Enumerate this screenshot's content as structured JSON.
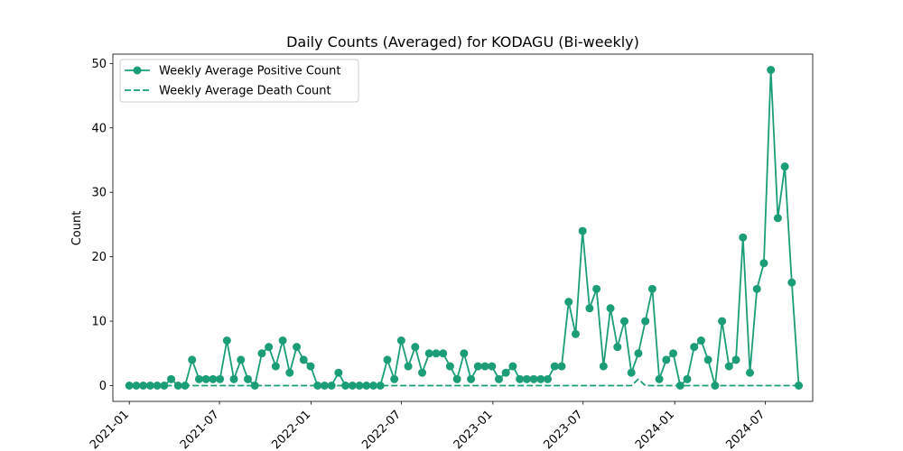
{
  "chart_data": {
    "type": "line",
    "title": "Daily Counts (Averaged) for KODAGU (Bi-weekly)",
    "xlabel": "",
    "ylabel": "Count",
    "ylim": [
      -2.45,
      51.45
    ],
    "yticks": [
      0,
      10,
      20,
      30,
      40,
      50
    ],
    "xlim": [
      "2020-11-29",
      "2024-10-04"
    ],
    "xticks": [
      "2021-01",
      "2021-07",
      "2022-01",
      "2022-07",
      "2023-01",
      "2023-07",
      "2024-01",
      "2024-07"
    ],
    "grid": false,
    "legend_position": "top-left",
    "colors": {
      "series": "#1b9e77"
    },
    "x": [
      "2021-01-01",
      "2021-01-15",
      "2021-01-29",
      "2021-02-12",
      "2021-02-26",
      "2021-03-12",
      "2021-03-26",
      "2021-04-09",
      "2021-04-23",
      "2021-05-07",
      "2021-05-21",
      "2021-06-04",
      "2021-06-18",
      "2021-07-02",
      "2021-07-16",
      "2021-07-30",
      "2021-08-13",
      "2021-08-27",
      "2021-09-10",
      "2021-09-24",
      "2021-10-08",
      "2021-10-22",
      "2021-11-05",
      "2021-11-19",
      "2021-12-03",
      "2021-12-17",
      "2021-12-31",
      "2022-01-14",
      "2022-01-28",
      "2022-02-11",
      "2022-02-25",
      "2022-03-11",
      "2022-03-25",
      "2022-04-08",
      "2022-04-22",
      "2022-05-06",
      "2022-05-20",
      "2022-06-03",
      "2022-06-17",
      "2022-07-01",
      "2022-07-15",
      "2022-07-29",
      "2022-08-12",
      "2022-08-26",
      "2022-09-09",
      "2022-09-23",
      "2022-10-07",
      "2022-10-21",
      "2022-11-04",
      "2022-11-18",
      "2022-12-02",
      "2022-12-16",
      "2022-12-30",
      "2023-01-13",
      "2023-01-27",
      "2023-02-10",
      "2023-02-24",
      "2023-03-10",
      "2023-03-24",
      "2023-04-07",
      "2023-04-21",
      "2023-05-05",
      "2023-05-19",
      "2023-06-02",
      "2023-06-16",
      "2023-06-30",
      "2023-07-14",
      "2023-07-28",
      "2023-08-11",
      "2023-08-25",
      "2023-09-08",
      "2023-09-22",
      "2023-10-06",
      "2023-10-20",
      "2023-11-03",
      "2023-11-17",
      "2023-12-01",
      "2023-12-15",
      "2023-12-29",
      "2024-01-12",
      "2024-01-26",
      "2024-02-09",
      "2024-02-23",
      "2024-03-08",
      "2024-03-22",
      "2024-04-05",
      "2024-04-19",
      "2024-05-03",
      "2024-05-17",
      "2024-05-31",
      "2024-06-14",
      "2024-06-28",
      "2024-07-12",
      "2024-07-26",
      "2024-08-09",
      "2024-08-23",
      "2024-09-06"
    ],
    "series": [
      {
        "name": "Weekly Average Positive Count",
        "style": "solid-with-markers",
        "values": [
          0,
          0,
          0,
          0,
          0,
          0,
          1,
          0,
          0,
          4,
          1,
          1,
          1,
          1,
          7,
          1,
          4,
          1,
          0,
          5,
          6,
          3,
          7,
          2,
          6,
          4,
          3,
          0,
          0,
          0,
          2,
          0,
          0,
          0,
          0,
          0,
          0,
          4,
          1,
          7,
          3,
          6,
          2,
          5,
          5,
          5,
          3,
          1,
          5,
          1,
          3,
          3,
          3,
          1,
          2,
          3,
          1,
          1,
          1,
          1,
          1,
          3,
          3,
          13,
          8,
          24,
          12,
          15,
          3,
          12,
          6,
          10,
          2,
          5,
          10,
          15,
          1,
          4,
          5,
          0,
          1,
          6,
          7,
          4,
          0,
          10,
          3,
          4,
          23,
          2,
          15,
          19,
          49,
          26,
          34,
          16,
          0
        ]
      },
      {
        "name": "Weekly Average Death Count",
        "style": "dashed",
        "values": [
          0,
          0,
          0,
          0,
          0,
          0,
          0,
          0,
          0,
          0,
          0,
          0,
          0,
          0,
          0,
          0,
          0,
          0,
          0,
          0,
          0,
          0,
          0,
          0,
          0,
          0,
          0,
          0,
          0,
          0,
          0,
          0,
          0,
          0,
          0,
          0,
          0,
          0,
          0,
          0,
          0,
          0,
          0,
          0,
          0,
          0,
          0,
          0,
          0,
          0,
          0,
          0,
          0,
          0,
          0,
          0,
          0,
          0,
          0,
          0,
          0,
          0,
          0,
          0,
          0,
          0,
          0,
          0,
          0,
          0,
          0,
          0,
          0,
          1,
          0,
          0,
          0,
          0,
          0,
          0,
          0,
          0,
          0,
          0,
          0,
          0,
          0,
          0,
          0,
          0,
          0,
          0,
          0,
          0,
          0,
          0,
          0
        ]
      }
    ]
  }
}
